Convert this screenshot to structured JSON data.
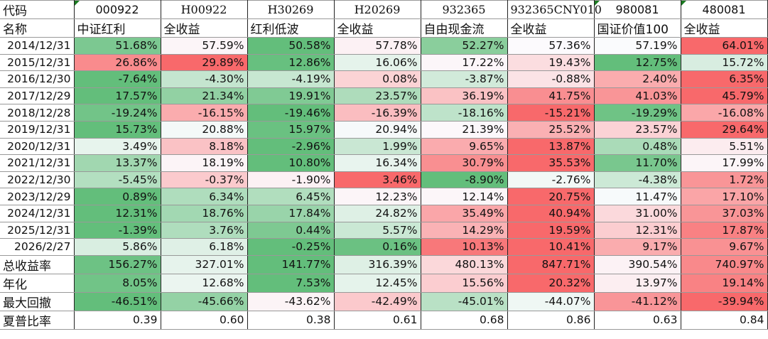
{
  "header": {
    "code_label": "代码",
    "name_label": "名称",
    "columns": [
      {
        "code": "000922",
        "name": "中证红利",
        "flag": true,
        "serif": false
      },
      {
        "code": "H00922",
        "name": "全收益",
        "flag": false,
        "serif": true
      },
      {
        "code": "H30269",
        "name": "红利低波",
        "flag": false,
        "serif": true
      },
      {
        "code": "H20269",
        "name": "全收益",
        "flag": false,
        "serif": true
      },
      {
        "code": "932365",
        "name": "自由现金流",
        "flag": false,
        "serif": true
      },
      {
        "code": "932365CNY010",
        "name": "全收益",
        "flag": false,
        "serif": true
      },
      {
        "code": "980081",
        "name": "国证价值100",
        "flag": true,
        "serif": false
      },
      {
        "code": "480081",
        "name": "全收益",
        "flag": true,
        "serif": false
      }
    ]
  },
  "rows": [
    {
      "label": "2014/12/31",
      "values": [
        "51.68%",
        "57.59%",
        "50.58%",
        "57.78%",
        "52.27%",
        "57.36%",
        "57.19%",
        "64.01%"
      ]
    },
    {
      "label": "2015/12/31",
      "values": [
        "26.86%",
        "29.89%",
        "12.86%",
        "16.06%",
        "17.22%",
        "19.43%",
        "12.75%",
        "15.72%"
      ]
    },
    {
      "label": "2016/12/30",
      "values": [
        "-7.64%",
        "-4.30%",
        "-4.19%",
        "0.08%",
        "-3.87%",
        "-0.88%",
        "2.40%",
        "6.35%"
      ]
    },
    {
      "label": "2017/12/29",
      "values": [
        "17.57%",
        "21.34%",
        "19.91%",
        "23.57%",
        "36.19%",
        "41.75%",
        "41.03%",
        "45.79%"
      ]
    },
    {
      "label": "2018/12/28",
      "values": [
        "-19.24%",
        "-16.15%",
        "-19.46%",
        "-16.39%",
        "-18.16%",
        "-15.21%",
        "-19.29%",
        "-16.08%"
      ]
    },
    {
      "label": "2019/12/31",
      "values": [
        "15.73%",
        "20.88%",
        "15.97%",
        "20.94%",
        "21.39%",
        "25.52%",
        "23.57%",
        "29.64%"
      ]
    },
    {
      "label": "2020/12/31",
      "values": [
        "3.49%",
        "8.18%",
        "-2.96%",
        "1.99%",
        "9.65%",
        "13.87%",
        "0.48%",
        "5.51%"
      ]
    },
    {
      "label": "2021/12/31",
      "values": [
        "13.37%",
        "18.19%",
        "10.80%",
        "16.34%",
        "30.79%",
        "35.53%",
        "11.70%",
        "17.99%"
      ]
    },
    {
      "label": "2022/12/30",
      "values": [
        "-5.45%",
        "-0.37%",
        "-1.90%",
        "3.46%",
        "-8.90%",
        "-2.76%",
        "-4.38%",
        "1.72%"
      ]
    },
    {
      "label": "2023/12/29",
      "values": [
        "0.89%",
        "6.34%",
        "6.45%",
        "12.23%",
        "12.14%",
        "20.75%",
        "11.47%",
        "17.10%"
      ]
    },
    {
      "label": "2024/12/31",
      "values": [
        "12.31%",
        "18.76%",
        "17.84%",
        "24.82%",
        "35.49%",
        "40.94%",
        "31.00%",
        "37.03%"
      ]
    },
    {
      "label": "2025/12/31",
      "values": [
        "-1.39%",
        "3.76%",
        "0.44%",
        "5.57%",
        "14.29%",
        "19.59%",
        "12.31%",
        "17.87%"
      ]
    },
    {
      "label": "2026/2/27",
      "values": [
        "5.86%",
        "6.18%",
        "-0.25%",
        "0.16%",
        "10.13%",
        "10.41%",
        "9.17%",
        "9.67%"
      ]
    },
    {
      "label": "总收益率",
      "values": [
        "156.27%",
        "327.01%",
        "141.77%",
        "316.39%",
        "480.13%",
        "847.71%",
        "390.54%",
        "740.97%"
      ],
      "text_label": true
    },
    {
      "label": "年化",
      "values": [
        "8.05%",
        "12.68%",
        "7.53%",
        "12.45%",
        "15.56%",
        "20.32%",
        "13.97%",
        "19.14%"
      ],
      "text_label": true
    },
    {
      "label": "最大回撤",
      "values": [
        "-46.51%",
        "-45.66%",
        "-43.62%",
        "-42.49%",
        "-45.01%",
        "-44.07%",
        "-41.12%",
        "-39.94%"
      ],
      "text_label": true
    },
    {
      "label": "夏普比率",
      "values": [
        "0.39",
        "0.60",
        "0.38",
        "0.61",
        "0.68",
        "0.86",
        "0.63",
        "0.84"
      ],
      "text_label": true,
      "no_color": true
    }
  ],
  "colors": {
    "low": "#63BE7B",
    "mid": "#FCFCFF",
    "high": "#F8696B",
    "flag": "#1A7A20"
  }
}
